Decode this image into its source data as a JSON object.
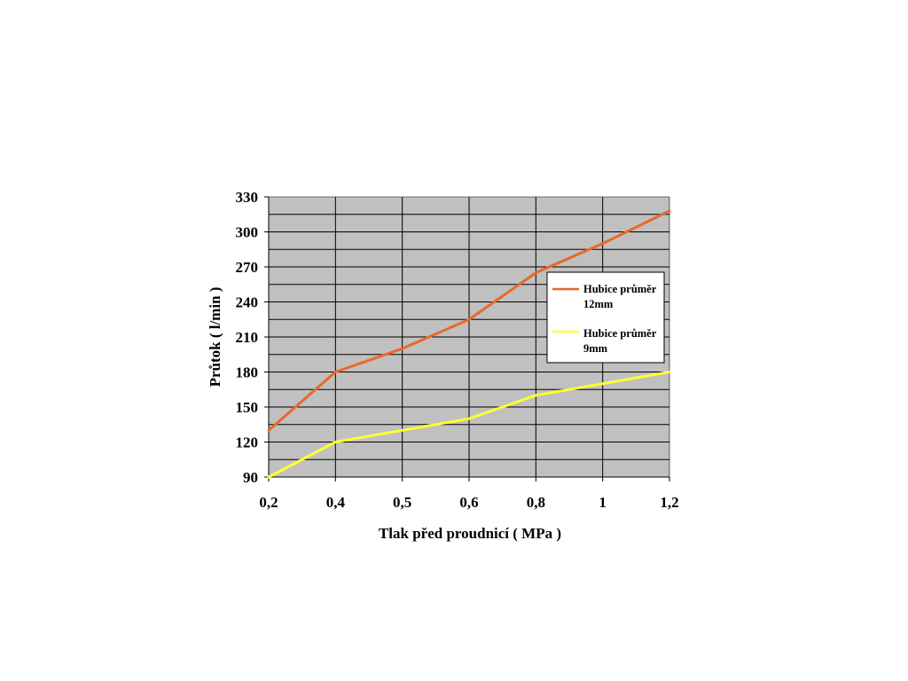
{
  "chart_data": {
    "type": "line",
    "title": "",
    "xlabel": "Tlak před proudnicí ( MPa )",
    "ylabel": "Průtok  ( l/min )",
    "categories": [
      "0,2",
      "0,4",
      "0,5",
      "0,6",
      "0,8",
      "1",
      "1,2"
    ],
    "ylim": [
      90,
      330
    ],
    "yticks": [
      90,
      120,
      150,
      180,
      210,
      240,
      270,
      300,
      330
    ],
    "grid": true,
    "plot_background": "#c0c0c0",
    "legend_position": "right",
    "series": [
      {
        "name_lines": [
          "Hubice průměr",
          "12mm"
        ],
        "color": "#e8692a",
        "values": [
          130,
          180,
          200,
          225,
          265,
          290,
          318
        ]
      },
      {
        "name_lines": [
          "Hubice průměr",
          "9mm"
        ],
        "color": "#ffff33",
        "values": [
          90,
          120,
          130,
          140,
          160,
          170,
          180
        ]
      }
    ]
  }
}
